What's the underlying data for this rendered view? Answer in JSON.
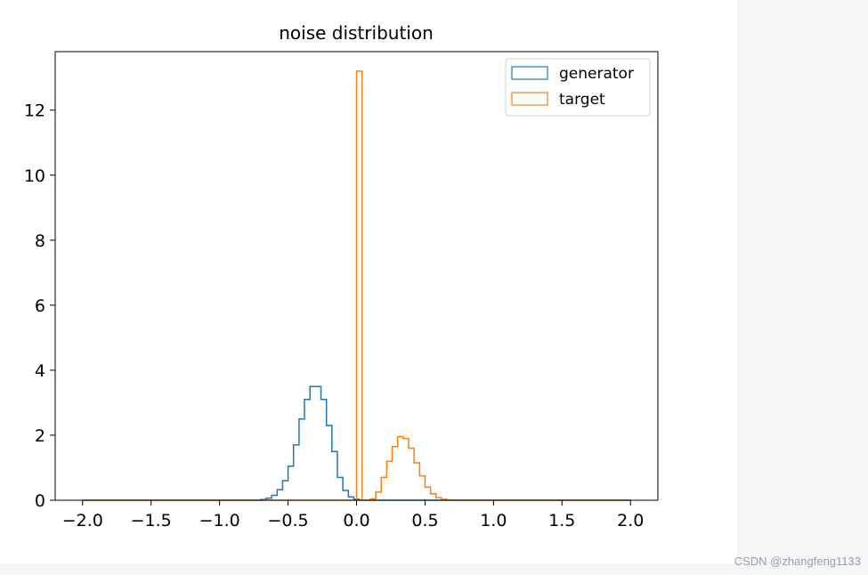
{
  "watermark": "CSDN @zhangfeng1133",
  "chart_data": {
    "type": "histogram",
    "title": "noise distribution",
    "xlabel": "",
    "ylabel": "",
    "xlim": [
      -2.2,
      2.2
    ],
    "ylim": [
      0,
      13.8
    ],
    "xticks": [
      -2.0,
      -1.5,
      -1.0,
      -0.5,
      0.0,
      0.5,
      1.0,
      1.5,
      2.0
    ],
    "xtick_labels": [
      "−2.0",
      "−1.5",
      "−1.0",
      "−0.5",
      "0.0",
      "0.5",
      "1.0",
      "1.5",
      "2.0"
    ],
    "yticks": [
      0,
      2,
      4,
      6,
      8,
      10,
      12
    ],
    "ytick_labels": [
      "0",
      "2",
      "4",
      "6",
      "8",
      "10",
      "12"
    ],
    "grid": false,
    "legend_position": "top-right",
    "series": [
      {
        "name": "generator",
        "color": "#1f77b4",
        "style": "step",
        "bin_edges": [
          -2.0,
          -0.7,
          -0.66,
          -0.62,
          -0.58,
          -0.54,
          -0.5,
          -0.46,
          -0.42,
          -0.38,
          -0.34,
          -0.3,
          -0.26,
          -0.22,
          -0.18,
          -0.14,
          -0.1,
          -0.06,
          -0.02,
          0.02,
          2.0
        ],
        "values": [
          0.0,
          0.02,
          0.06,
          0.15,
          0.32,
          0.6,
          1.05,
          1.7,
          2.5,
          3.1,
          3.5,
          3.5,
          3.1,
          2.3,
          1.5,
          0.7,
          0.3,
          0.1,
          0.03,
          0.0
        ]
      },
      {
        "name": "target",
        "color": "#ff7f0e",
        "style": "step",
        "bin_edges": [
          -2.0,
          0.0,
          0.04,
          0.1,
          0.14,
          0.18,
          0.22,
          0.26,
          0.3,
          0.34,
          0.38,
          0.42,
          0.46,
          0.5,
          0.54,
          0.58,
          0.62,
          0.66,
          0.7,
          0.74,
          2.0
        ],
        "values": [
          0.0,
          13.2,
          0.0,
          0.04,
          0.25,
          0.7,
          1.2,
          1.65,
          1.95,
          1.9,
          1.6,
          1.15,
          0.75,
          0.4,
          0.2,
          0.08,
          0.03,
          0.01,
          0.0,
          0.0
        ]
      }
    ]
  }
}
